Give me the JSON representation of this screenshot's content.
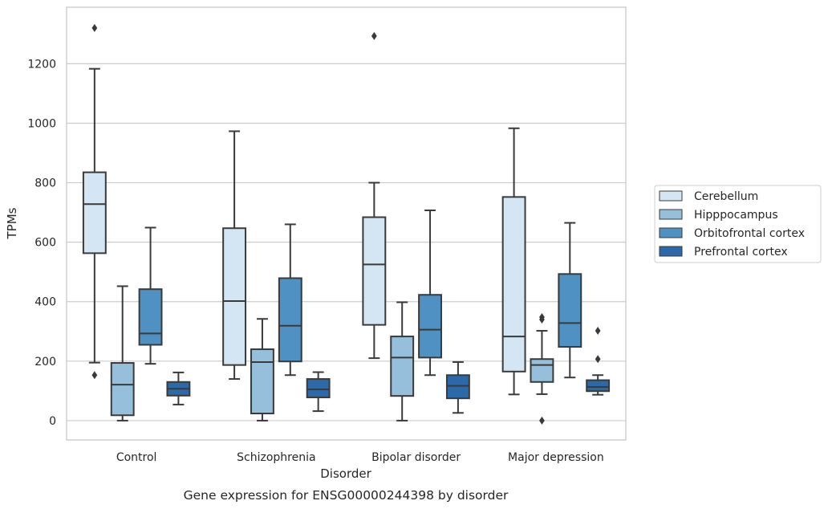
{
  "chart_data": {
    "type": "box",
    "caption": "Gene expression for ENSG00000244398 by disorder",
    "xlabel": "Disorder",
    "ylabel": "TPMs",
    "ylim": [
      -65,
      1390
    ],
    "yticks": [
      0,
      200,
      400,
      600,
      800,
      1000,
      1200
    ],
    "grid": "horizontal",
    "legend_position": "right",
    "categories": [
      "Control",
      "Schizophrenia",
      "Bipolar disorder",
      "Major depression"
    ],
    "series": [
      {
        "name": "Cerebellum",
        "color": "#d4e5f4",
        "boxes": [
          {
            "whislo": 195,
            "q1": 563,
            "med": 728,
            "q3": 835,
            "whishi": 1183,
            "fliers": [
              153,
              1320
            ]
          },
          {
            "whislo": 140,
            "q1": 187,
            "med": 402,
            "q3": 647,
            "whishi": 973,
            "fliers": []
          },
          {
            "whislo": 210,
            "q1": 322,
            "med": 525,
            "q3": 684,
            "whishi": 800,
            "fliers": [
              1293
            ]
          },
          {
            "whislo": 88,
            "q1": 165,
            "med": 283,
            "q3": 752,
            "whishi": 983,
            "fliers": []
          }
        ]
      },
      {
        "name": "Hipppocampus",
        "color": "#95bfdb",
        "boxes": [
          {
            "whislo": 0,
            "q1": 18,
            "med": 121,
            "q3": 194,
            "whishi": 452,
            "fliers": []
          },
          {
            "whislo": 0,
            "q1": 24,
            "med": 197,
            "q3": 240,
            "whishi": 342,
            "fliers": []
          },
          {
            "whislo": 0,
            "q1": 83,
            "med": 212,
            "q3": 283,
            "whishi": 398,
            "fliers": []
          },
          {
            "whislo": 89,
            "q1": 130,
            "med": 187,
            "q3": 207,
            "whishi": 302,
            "fliers": [
              0,
              340,
              348
            ]
          }
        ]
      },
      {
        "name": "Orbitofrontal cortex",
        "color": "#4e91c2",
        "boxes": [
          {
            "whislo": 191,
            "q1": 255,
            "med": 293,
            "q3": 442,
            "whishi": 649,
            "fliers": []
          },
          {
            "whislo": 153,
            "q1": 199,
            "med": 319,
            "q3": 479,
            "whishi": 660,
            "fliers": []
          },
          {
            "whislo": 153,
            "q1": 212,
            "med": 306,
            "q3": 423,
            "whishi": 707,
            "fliers": []
          },
          {
            "whislo": 145,
            "q1": 248,
            "med": 328,
            "q3": 493,
            "whishi": 665,
            "fliers": []
          }
        ]
      },
      {
        "name": "Prefrontal cortex",
        "color": "#2c69a8",
        "boxes": [
          {
            "whislo": 54,
            "q1": 84,
            "med": 107,
            "q3": 130,
            "whishi": 162,
            "fliers": []
          },
          {
            "whislo": 32,
            "q1": 78,
            "med": 105,
            "q3": 140,
            "whishi": 163,
            "fliers": []
          },
          {
            "whislo": 26,
            "q1": 75,
            "med": 117,
            "q3": 153,
            "whishi": 197,
            "fliers": []
          },
          {
            "whislo": 87,
            "q1": 99,
            "med": 113,
            "q3": 136,
            "whishi": 153,
            "fliers": [
              207,
              302
            ]
          }
        ]
      }
    ]
  }
}
